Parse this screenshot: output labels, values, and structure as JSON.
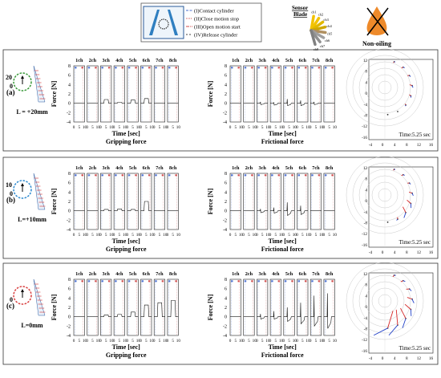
{
  "legend": {
    "items": [
      "(I)Contact cylinder",
      "(II)Close motion stop",
      "(III)Open motion start",
      "(IV)Release cylinder"
    ],
    "sensor_title": [
      "Sensor",
      "Blade"
    ],
    "channel_labels": [
      "ch1",
      "ch2",
      "ch3",
      "ch4",
      "ch5",
      "ch6",
      "ch7",
      "ch8"
    ],
    "non_oiling": "Non-oiling"
  },
  "rows": [
    {
      "letter": "(a)",
      "dist_label": "L = +20mm",
      "top_num": "20",
      "zero": "0",
      "circle_color": "#3a9a3a",
      "grip": [
        0,
        0,
        0.8,
        0.2,
        0.7,
        1.0,
        0,
        0
      ],
      "fric": [
        0,
        0,
        -0.3,
        -0.4,
        -0.5,
        -0.5,
        -0.3,
        0
      ],
      "fric_peak": [
        0,
        0,
        0.3,
        0.2,
        0.9,
        0.6,
        0.3,
        0
      ]
    },
    {
      "letter": "(b)",
      "dist_label": "L=+10mm",
      "top_num": "10",
      "zero": "0",
      "circle_color": "#2f8bd0",
      "grip": [
        0,
        0,
        0.3,
        0.4,
        0.3,
        2.0,
        0,
        0
      ],
      "fric": [
        0,
        0,
        -0.4,
        -0.5,
        -1.0,
        -0.8,
        0,
        0
      ],
      "fric_peak": [
        0,
        0,
        0.4,
        0.7,
        1.8,
        1.1,
        0,
        0
      ]
    },
    {
      "letter": "(c)",
      "dist_label": "L=0mm",
      "top_num": "",
      "zero": "0",
      "circle_color": "#d94040",
      "grip": [
        0,
        0,
        0.4,
        0.5,
        1.0,
        2.5,
        3.0,
        3.5
      ],
      "fric": [
        0,
        0,
        -0.5,
        -0.5,
        -1.0,
        -1.5,
        -2.0,
        -2.5
      ],
      "fric_peak": [
        0,
        0,
        0.6,
        1.2,
        2.0,
        3.0,
        4.5,
        5.0
      ]
    }
  ],
  "grip_title": "Gripping force",
  "fric_title": "Frictional force",
  "y_label": "Force [N]",
  "x_label": "Time [sec]",
  "y_ticks": [
    "8",
    "6",
    "4",
    "2",
    "0",
    "-2",
    "-4"
  ],
  "x_ticks": [
    "0",
    "5",
    "10"
  ],
  "ch_titles": [
    "1ch",
    "2ch",
    "3ch",
    "4ch",
    "5ch",
    "6ch",
    "7ch",
    "8ch"
  ],
  "polar": {
    "time_label": "Time:5.25 sec",
    "x_ticks": [
      "-4",
      "0",
      "4",
      "8",
      "12",
      "16"
    ],
    "y_ticks": [
      "12",
      "8",
      "4",
      "0",
      "-4",
      "-8",
      "-12",
      "-16"
    ]
  },
  "chart_data": [
    {
      "type": "line",
      "title": "Gripping force (a)",
      "xlabel": "Time [sec]",
      "ylabel": "Force [N]",
      "ylim": [
        -4,
        8
      ],
      "series": [
        {
          "name": "1ch",
          "values": [
            0
          ]
        },
        {
          "name": "2ch",
          "values": [
            0
          ]
        },
        {
          "name": "3ch",
          "values": [
            0.8
          ]
        },
        {
          "name": "4ch",
          "values": [
            0.2
          ]
        },
        {
          "name": "5ch",
          "values": [
            0.7
          ]
        },
        {
          "name": "6ch",
          "values": [
            1.0
          ]
        },
        {
          "name": "7ch",
          "values": [
            0
          ]
        },
        {
          "name": "8ch",
          "values": [
            0
          ]
        }
      ]
    },
    {
      "type": "line",
      "title": "Gripping force (b)",
      "xlabel": "Time [sec]",
      "ylabel": "Force [N]",
      "ylim": [
        -4,
        8
      ],
      "series": [
        {
          "name": "3ch",
          "values": [
            0.3
          ]
        },
        {
          "name": "4ch",
          "values": [
            0.4
          ]
        },
        {
          "name": "5ch",
          "values": [
            0.3
          ]
        },
        {
          "name": "6ch",
          "values": [
            2.0
          ]
        }
      ]
    },
    {
      "type": "line",
      "title": "Gripping force (c)",
      "xlabel": "Time [sec]",
      "ylabel": "Force [N]",
      "ylim": [
        -4,
        8
      ],
      "series": [
        {
          "name": "3ch",
          "values": [
            0.4
          ]
        },
        {
          "name": "4ch",
          "values": [
            0.5
          ]
        },
        {
          "name": "5ch",
          "values": [
            1.0
          ]
        },
        {
          "name": "6ch",
          "values": [
            2.5
          ]
        },
        {
          "name": "7ch",
          "values": [
            3.0
          ]
        },
        {
          "name": "8ch",
          "values": [
            3.5
          ]
        }
      ]
    }
  ]
}
